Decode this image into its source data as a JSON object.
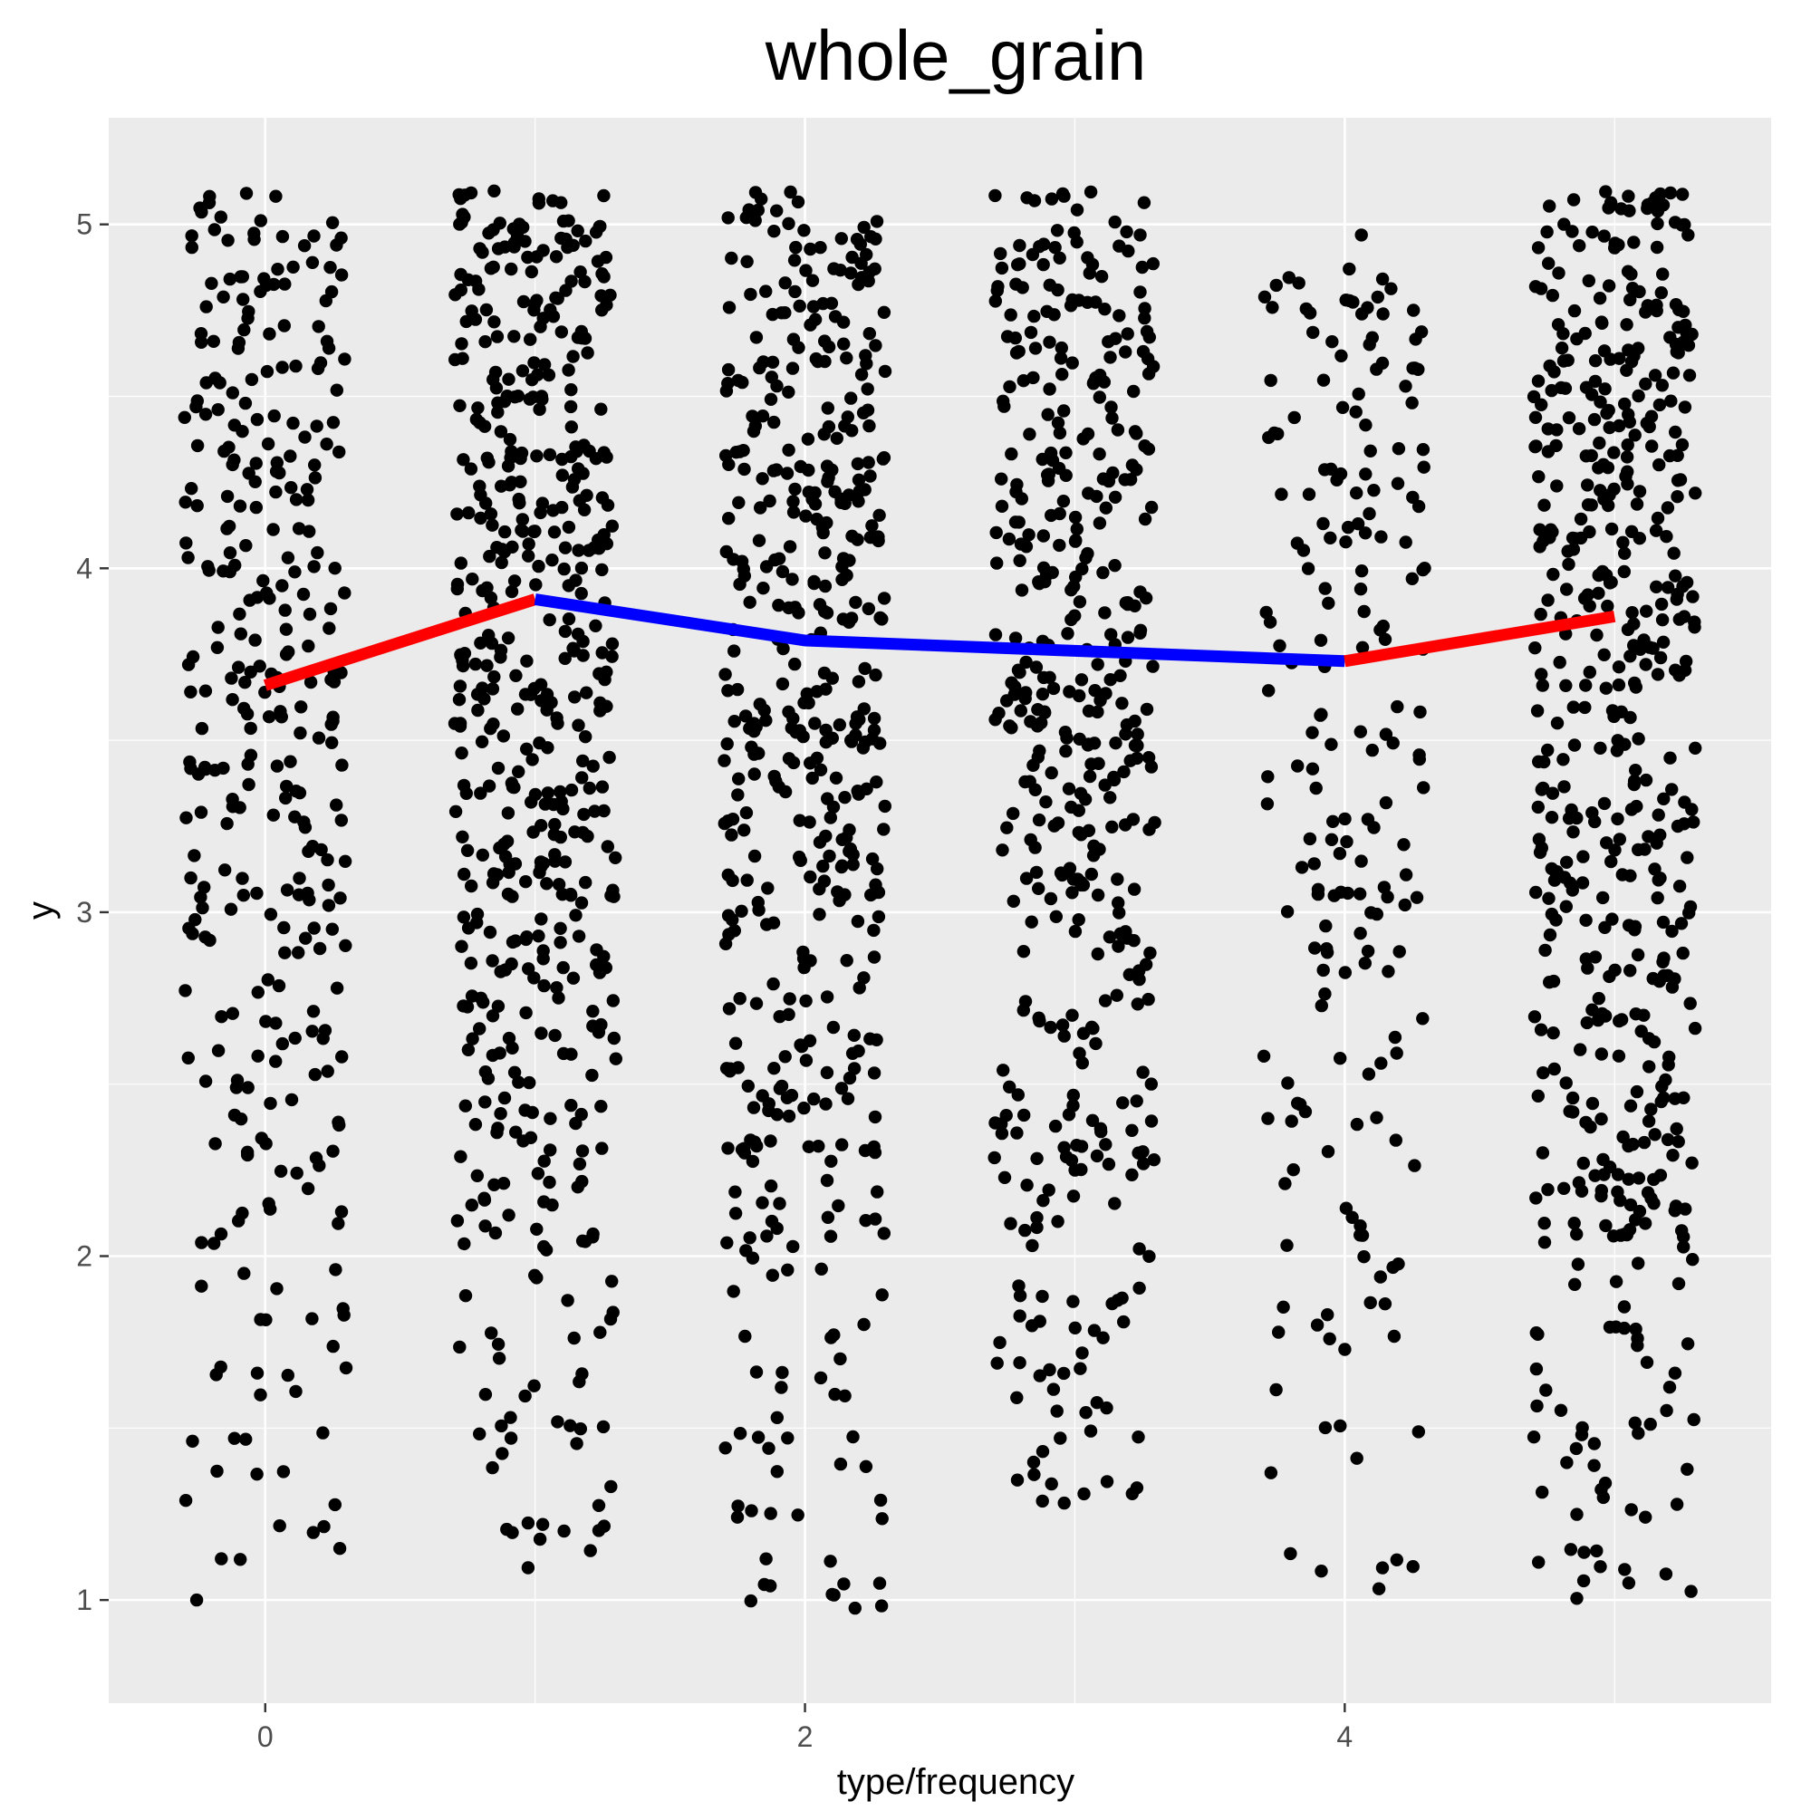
{
  "chart_data": {
    "type": "scatter",
    "title": "whole_grain",
    "xlabel": "type/frequency",
    "ylabel": "y",
    "xlim": [
      -0.58,
      5.58
    ],
    "ylim": [
      0.7,
      5.31
    ],
    "x_ticks": [
      0,
      2,
      4
    ],
    "x_tick_labels": [
      "0",
      "2",
      "4"
    ],
    "y_ticks": [
      1,
      2,
      3,
      4,
      5
    ],
    "y_tick_labels": [
      "1",
      "2",
      "3",
      "4",
      "5"
    ],
    "grid": true,
    "panel_background": "#ebebeb",
    "grid_color": "#ffffff",
    "point_color": "#000000",
    "jitter_groups": [
      {
        "x": 0,
        "count": 330,
        "y_range": [
          1.0,
          5.1
        ],
        "weight": 1
      },
      {
        "x": 1,
        "count": 520,
        "y_range": [
          1.08,
          5.1
        ],
        "weight": 2
      },
      {
        "x": 2,
        "count": 470,
        "y_range": [
          0.97,
          5.1
        ],
        "weight": 1.3
      },
      {
        "x": 3,
        "count": 440,
        "y_range": [
          1.28,
          5.1
        ],
        "weight": 1.3
      },
      {
        "x": 4,
        "count": 200,
        "y_range": [
          1.03,
          5.0
        ],
        "weight": 0.8
      },
      {
        "x": 5,
        "count": 520,
        "y_range": [
          0.94,
          5.1
        ],
        "weight": 1.2
      }
    ],
    "jitter_width": 0.3,
    "series": [
      {
        "type": "line",
        "color": "#ff0000",
        "x": [
          0,
          1
        ],
        "y": [
          3.66,
          3.91
        ]
      },
      {
        "type": "line",
        "color": "#0000ff",
        "x": [
          1,
          2,
          3,
          4
        ],
        "y": [
          3.91,
          3.79,
          3.76,
          3.73
        ]
      },
      {
        "type": "line",
        "color": "#ff0000",
        "x": [
          4,
          5
        ],
        "y": [
          3.73,
          3.86
        ]
      }
    ]
  }
}
